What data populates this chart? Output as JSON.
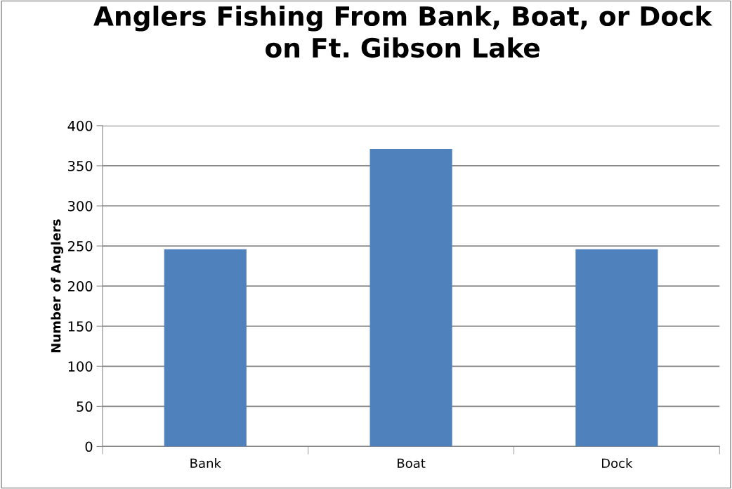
{
  "chart_data": {
    "type": "bar",
    "title": "Anglers Fishing From Bank, Boat, or Dock\non Ft. Gibson Lake",
    "ylabel": "Number of Anglers",
    "categories": [
      "Bank",
      "Boat",
      "Dock"
    ],
    "values": [
      246,
      371,
      246
    ],
    "color": "#4f81bd",
    "ylim": [
      0,
      400
    ],
    "yticks": [
      0,
      50,
      100,
      150,
      200,
      250,
      300,
      350,
      400
    ],
    "grid": "y",
    "legend": false
  }
}
